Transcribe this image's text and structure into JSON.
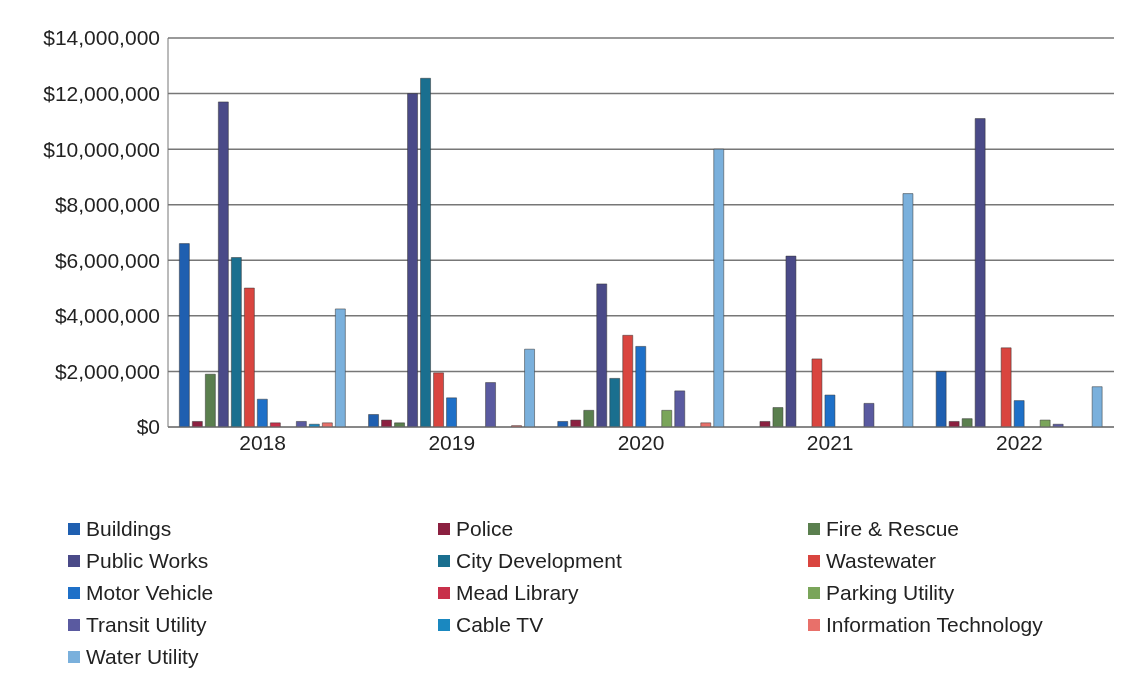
{
  "chart_data": {
    "type": "bar",
    "categories": [
      "2018",
      "2019",
      "2020",
      "2021",
      "2022"
    ],
    "ylim": [
      0,
      14000000
    ],
    "yticks": [
      {
        "value": 0,
        "label": "$0"
      },
      {
        "value": 2000000,
        "label": "$2,000,000"
      },
      {
        "value": 4000000,
        "label": "$4,000,000"
      },
      {
        "value": 6000000,
        "label": "$6,000,000"
      },
      {
        "value": 8000000,
        "label": "$8,000,000"
      },
      {
        "value": 10000000,
        "label": "$10,000,000"
      },
      {
        "value": 12000000,
        "label": "$12,000,000"
      },
      {
        "value": 14000000,
        "label": "$14,000,000"
      }
    ],
    "grid": "y",
    "legend": "bottom",
    "series": [
      {
        "name": "Buildings",
        "color": "#1f5fb0",
        "values": [
          6600000,
          450000,
          200000,
          0,
          2000000
        ]
      },
      {
        "name": "Police",
        "color": "#8b2040",
        "values": [
          200000,
          250000,
          250000,
          200000,
          200000
        ]
      },
      {
        "name": "Fire & Rescue",
        "color": "#5a7f4e",
        "values": [
          1900000,
          150000,
          600000,
          700000,
          300000
        ]
      },
      {
        "name": "Public Works",
        "color": "#4a4a88",
        "values": [
          11700000,
          12000000,
          5150000,
          6150000,
          11100000
        ]
      },
      {
        "name": "City Development",
        "color": "#1a6f8f",
        "values": [
          6100000,
          12550000,
          1750000,
          0,
          0
        ]
      },
      {
        "name": "Wastewater",
        "color": "#d9453f",
        "values": [
          5000000,
          1950000,
          3300000,
          2450000,
          2850000
        ]
      },
      {
        "name": "Motor Vehicle",
        "color": "#1e70c8",
        "values": [
          1000000,
          1050000,
          2900000,
          1150000,
          950000
        ]
      },
      {
        "name": "Mead Library",
        "color": "#c8304a",
        "values": [
          150000,
          0,
          0,
          0,
          0
        ]
      },
      {
        "name": "Parking Utility",
        "color": "#7aa55a",
        "values": [
          0,
          0,
          600000,
          0,
          250000
        ]
      },
      {
        "name": "Transit Utility",
        "color": "#5a5aa0",
        "values": [
          200000,
          1600000,
          1300000,
          850000,
          100000
        ]
      },
      {
        "name": "Cable TV",
        "color": "#1a88c0",
        "values": [
          100000,
          0,
          0,
          0,
          0
        ]
      },
      {
        "name": "Information Technology",
        "color": "#e8706a",
        "values": [
          150000,
          50000,
          150000,
          0,
          0
        ]
      },
      {
        "name": "Water Utility",
        "color": "#7ab0dc",
        "values": [
          4250000,
          2800000,
          10000000,
          8400000,
          1450000
        ]
      }
    ]
  }
}
